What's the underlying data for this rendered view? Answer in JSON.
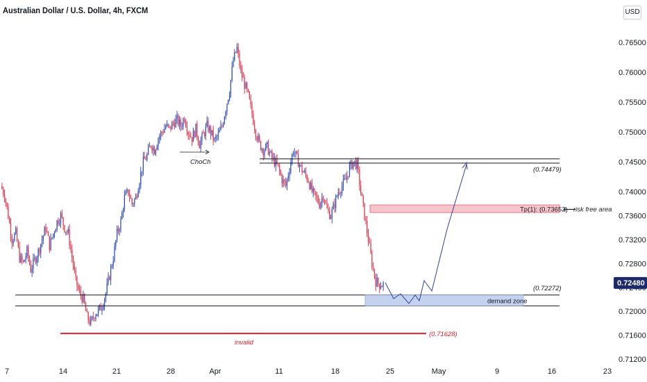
{
  "header": {
    "title": "Australian Dollar / U.S. Dollar, 4h, FXCM",
    "currency": "USD"
  },
  "colors": {
    "bull": "#2f4eb8",
    "bear": "#e0354f",
    "demand_zone": "#c5d2ef",
    "tp_zone": "#f6c5cb",
    "invalid": "#e0202a",
    "projection": "#2c3f9e",
    "price_badge": "#1a2a6c"
  },
  "chart_data": {
    "type": "candlestick",
    "y_axis_ticks": [
      "0.76500",
      "0.76000",
      "0.75500",
      "0.75000",
      "0.74500",
      "0.74000",
      "0.73600",
      "0.73200",
      "0.72800",
      "0.72400",
      "0.72000",
      "0.71600",
      "0.71200"
    ],
    "x_axis_ticks": [
      "7",
      "14",
      "21",
      "28",
      "Apr",
      "11",
      "18",
      "25",
      "May",
      "9",
      "16",
      "23"
    ],
    "current_price": "0.72480",
    "ylim": [
      0.712,
      0.768
    ],
    "levels": [
      {
        "name": "resistance-upper",
        "value": 0.7455
      },
      {
        "name": "resistance-lower",
        "value": 0.74479,
        "label": "(0.74479)"
      },
      {
        "name": "support-upper",
        "value": 0.72272,
        "label": "(0.72272)"
      },
      {
        "name": "support-lower",
        "value": 0.7209
      },
      {
        "name": "invalid",
        "value": 0.71628,
        "label": "(0.71628)",
        "caption": "invalid"
      }
    ],
    "zones": {
      "take_profit": {
        "low": 0.73652,
        "high": 0.7378,
        "label": "Tp(1): (0.73652)",
        "note": "risk free area"
      },
      "demand": {
        "low": 0.7209,
        "high": 0.72272,
        "label": "demand zone"
      }
    },
    "annotations": {
      "choch": "ChoCh"
    },
    "closes": [
      0.741,
      0.7395,
      0.736,
      0.732,
      0.733,
      0.729,
      0.728,
      0.73,
      0.727,
      0.7285,
      0.73,
      0.732,
      0.734,
      0.731,
      0.733,
      0.735,
      0.736,
      0.734,
      0.733,
      0.729,
      0.725,
      0.723,
      0.722,
      0.719,
      0.718,
      0.7195,
      0.72,
      0.721,
      0.723,
      0.726,
      0.729,
      0.733,
      0.735,
      0.739,
      0.74,
      0.738,
      0.739,
      0.742,
      0.745,
      0.746,
      0.748,
      0.747,
      0.749,
      0.75,
      0.751,
      0.7505,
      0.7515,
      0.752,
      0.751,
      0.7525,
      0.75,
      0.749,
      0.7505,
      0.748,
      0.7495,
      0.751,
      0.75,
      0.7485,
      0.7495,
      0.751,
      0.754,
      0.757,
      0.762,
      0.764,
      0.76,
      0.758,
      0.756,
      0.753,
      0.75,
      0.748,
      0.747,
      0.7475,
      0.746,
      0.745,
      0.744,
      0.742,
      0.741,
      0.744,
      0.747,
      0.7455,
      0.744,
      0.743,
      0.742,
      0.74,
      0.739,
      0.738,
      0.7395,
      0.737,
      0.736,
      0.738,
      0.74,
      0.741,
      0.742,
      0.744,
      0.745,
      0.7445,
      0.74,
      0.736,
      0.732,
      0.728,
      0.725,
      0.7245
    ]
  }
}
